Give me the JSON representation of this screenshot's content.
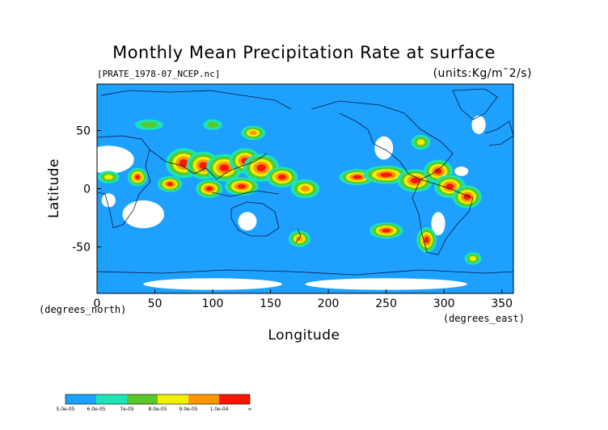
{
  "chart_data": {
    "type": "heatmap",
    "title": "Monthly Mean Precipitation Rate at surface",
    "source_label": "[PRATE_1978-07_NCEP.nc]",
    "units_label": "(units:Kg/m¯2/s)",
    "xlabel": "Longitude",
    "ylabel": "Latitude",
    "x_unit_label": "(degrees_east)",
    "y_unit_label": "(degrees_north)",
    "xlim": [
      0,
      360
    ],
    "ylim": [
      -90,
      90
    ],
    "xticks": [
      0,
      50,
      100,
      150,
      200,
      250,
      300,
      350
    ],
    "yticks": [
      50,
      0,
      -50
    ],
    "colorbar": {
      "labels": [
        "5.0e-05",
        "6.0e-05",
        "7e-05",
        "8.0e-05",
        "9.0e-05",
        "1.0e-04",
        "∞"
      ],
      "colors": [
        "#1ea0ff",
        "#19e6b4",
        "#5ac828",
        "#f0f000",
        "#ff9600",
        "#ff1400"
      ]
    },
    "background_color": "#ffffff",
    "regions": [
      {
        "lon": 75,
        "lat": 22,
        "rx": 10,
        "ry": 9,
        "level": 5
      },
      {
        "lon": 92,
        "lat": 20,
        "rx": 9,
        "ry": 8,
        "level": 5
      },
      {
        "lon": 110,
        "lat": 18,
        "rx": 10,
        "ry": 8,
        "level": 5
      },
      {
        "lon": 128,
        "lat": 24,
        "rx": 8,
        "ry": 7,
        "level": 5
      },
      {
        "lon": 142,
        "lat": 18,
        "rx": 10,
        "ry": 8,
        "level": 5
      },
      {
        "lon": 160,
        "lat": 10,
        "rx": 8,
        "ry": 5,
        "level": 5
      },
      {
        "lon": 97,
        "lat": 0,
        "rx": 6,
        "ry": 4,
        "level": 5
      },
      {
        "lon": 125,
        "lat": 2,
        "rx": 9,
        "ry": 4,
        "level": 5
      },
      {
        "lon": 63,
        "lat": 4,
        "rx": 5,
        "ry": 3,
        "level": 5
      },
      {
        "lon": 180,
        "lat": 0,
        "rx": 8,
        "ry": 5,
        "level": 4
      },
      {
        "lon": 225,
        "lat": 10,
        "rx": 10,
        "ry": 3,
        "level": 5
      },
      {
        "lon": 250,
        "lat": 12,
        "rx": 14,
        "ry": 4,
        "level": 5
      },
      {
        "lon": 275,
        "lat": 7,
        "rx": 10,
        "ry": 6,
        "level": 5
      },
      {
        "lon": 295,
        "lat": 15,
        "rx": 7,
        "ry": 6,
        "level": 5
      },
      {
        "lon": 305,
        "lat": 2,
        "rx": 8,
        "ry": 6,
        "level": 5
      },
      {
        "lon": 320,
        "lat": -7,
        "rx": 7,
        "ry": 6,
        "level": 5
      },
      {
        "lon": 35,
        "lat": 10,
        "rx": 3,
        "ry": 4,
        "level": 5
      },
      {
        "lon": 250,
        "lat": -36,
        "rx": 9,
        "ry": 3,
        "level": 5
      },
      {
        "lon": 285,
        "lat": -44,
        "rx": 3,
        "ry": 7,
        "level": 5
      },
      {
        "lon": 175,
        "lat": -43,
        "rx": 5,
        "ry": 4,
        "level": 4
      },
      {
        "lon": 135,
        "lat": 48,
        "rx": 6,
        "ry": 3,
        "level": 4
      },
      {
        "lon": 10,
        "lat": 10,
        "rx": 6,
        "ry": 3,
        "level": 3
      },
      {
        "lon": 45,
        "lat": 55,
        "rx": 10,
        "ry": 3,
        "level": 2
      },
      {
        "lon": 100,
        "lat": 55,
        "rx": 6,
        "ry": 3,
        "level": 2
      },
      {
        "lon": 280,
        "lat": 40,
        "rx": 5,
        "ry": 4,
        "level": 3
      },
      {
        "lon": 325,
        "lat": -60,
        "rx": 4,
        "ry": 3,
        "level": 3
      }
    ],
    "no_data_patches": [
      {
        "lon": 10,
        "lat": 25,
        "rx": 22,
        "ry": 12
      },
      {
        "lon": 40,
        "lat": -22,
        "rx": 18,
        "ry": 12
      },
      {
        "lon": 10,
        "lat": -10,
        "rx": 6,
        "ry": 6
      },
      {
        "lon": 130,
        "lat": -28,
        "rx": 8,
        "ry": 8
      },
      {
        "lon": 248,
        "lat": 35,
        "rx": 8,
        "ry": 10
      },
      {
        "lon": 295,
        "lat": -30,
        "rx": 6,
        "ry": 10
      },
      {
        "lon": 315,
        "lat": 15,
        "rx": 6,
        "ry": 4
      },
      {
        "lon": 330,
        "lat": 55,
        "rx": 6,
        "ry": 8
      },
      {
        "lon": 100,
        "lat": -82,
        "rx": 60,
        "ry": 5
      },
      {
        "lon": 250,
        "lat": -82,
        "rx": 70,
        "ry": 5
      }
    ]
  }
}
